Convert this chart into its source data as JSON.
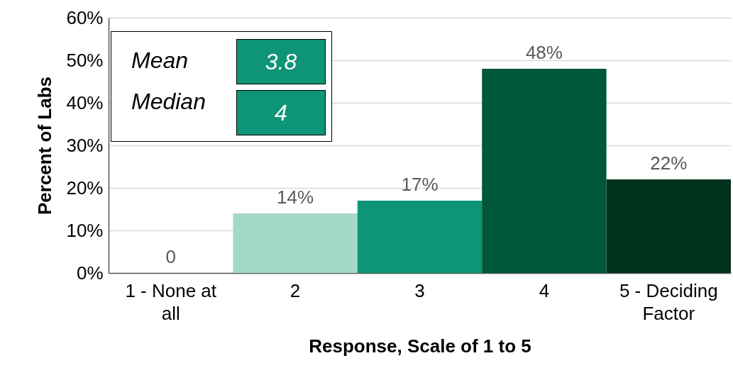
{
  "chart_data": {
    "type": "bar",
    "xlabel": "Response, Scale of 1 to 5",
    "ylabel": "Percent of Labs",
    "categories": [
      "1 - None at all",
      "2",
      "3",
      "4",
      "5 - Deciding Factor"
    ],
    "values": [
      0,
      14,
      17,
      48,
      22
    ],
    "colors": [
      "#a3d9c9",
      "#a3d9c9",
      "#0e9577",
      "#00573a",
      "#01321e"
    ],
    "value_labels": [
      "0",
      "14%",
      "17%",
      "48%",
      "22%"
    ],
    "ylim": [
      0,
      60
    ],
    "yticks": [
      {
        "value": 0,
        "label": "0%"
      },
      {
        "value": 10,
        "label": "10%"
      },
      {
        "value": 20,
        "label": "20%"
      },
      {
        "value": 30,
        "label": "30%"
      },
      {
        "value": 40,
        "label": "40%"
      },
      {
        "value": 50,
        "label": "50%"
      },
      {
        "value": 60,
        "label": "60%"
      }
    ],
    "grid": "y",
    "annotations": [
      "Mean",
      "3.8",
      "Median",
      "4"
    ]
  }
}
